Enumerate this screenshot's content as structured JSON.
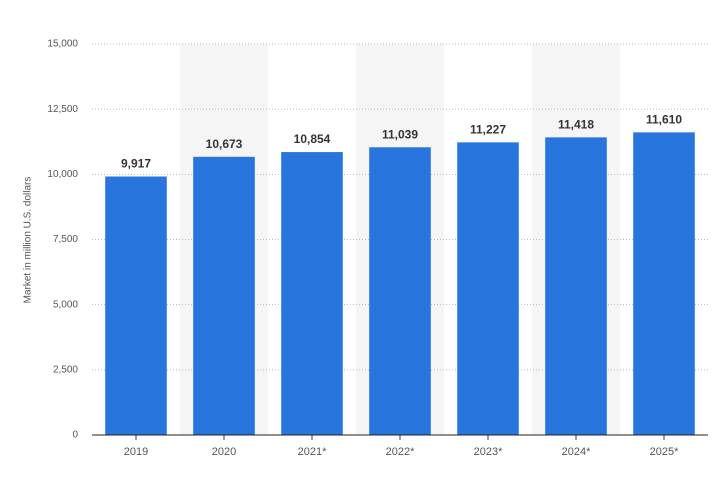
{
  "chart_data": {
    "type": "bar",
    "y_label": "Market in million U.S. dollars",
    "categories": [
      "2019",
      "2020",
      "2021*",
      "2022*",
      "2023*",
      "2024*",
      "2025*"
    ],
    "values": [
      9917,
      10673,
      10854,
      11039,
      11227,
      11418,
      11610
    ],
    "value_labels": [
      "9,917",
      "10,673",
      "10,854",
      "11,039",
      "11,227",
      "11,418",
      "11,610"
    ],
    "color": "#2876dd",
    "ylim": [
      0,
      15000
    ],
    "yticks": [
      0,
      {
        "value": 2500,
        "label": "2,500"
      },
      {
        "value": 5000,
        "label": "5,000"
      },
      {
        "value": 7500,
        "label": "7,500"
      },
      {
        "value": 10000,
        "label": "10,000"
      },
      {
        "value": 12500,
        "label": "12,500"
      },
      {
        "value": 15000,
        "label": "15,000"
      }
    ],
    "grid": true
  }
}
